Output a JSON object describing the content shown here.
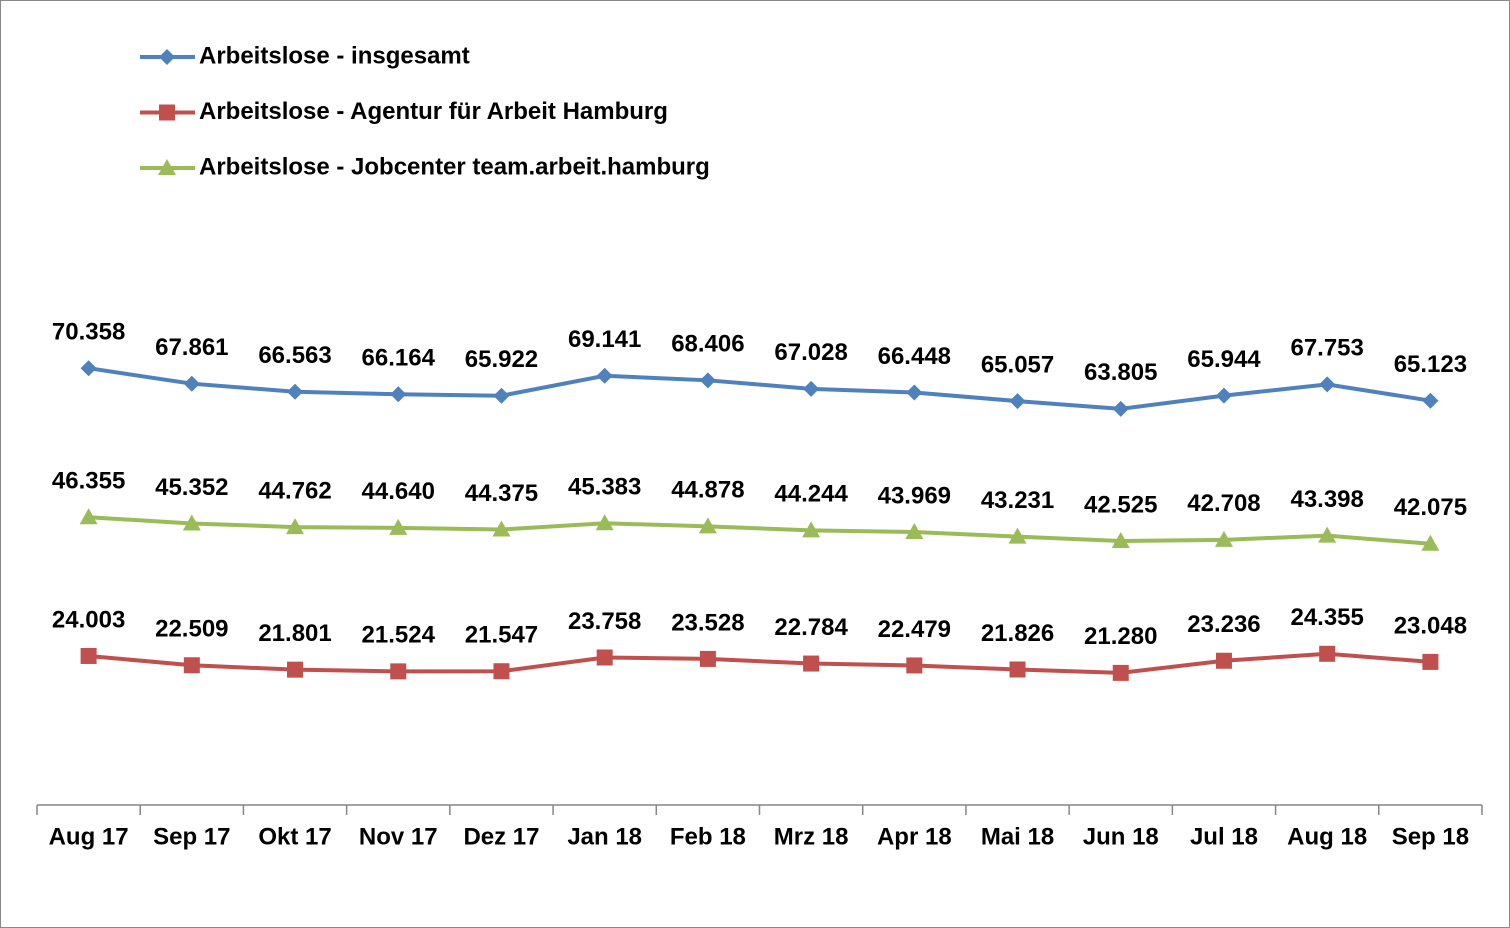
{
  "chart_data": {
    "type": "line",
    "categories": [
      "Aug 17",
      "Sep 17",
      "Okt 17",
      "Nov 17",
      "Dez 17",
      "Jan 18",
      "Feb 18",
      "Mrz 18",
      "Apr 18",
      "Mai 18",
      "Jun 18",
      "Jul 18",
      "Aug 18",
      "Sep 18"
    ],
    "series": [
      {
        "name": "Arbeitslose - insgesamt",
        "color": "#4f81bd",
        "marker": "diamond",
        "values": [
          70358,
          67861,
          66563,
          66164,
          65922,
          69141,
          68406,
          67028,
          66448,
          65057,
          63805,
          65944,
          67753,
          65123
        ],
        "value_labels": [
          "70.358",
          "67.861",
          "66.563",
          "66.164",
          "65.922",
          "69.141",
          "68.406",
          "67.028",
          "66.448",
          "65.057",
          "63.805",
          "65.944",
          "67.753",
          "65.123"
        ]
      },
      {
        "name": "Arbeitslose - Agentur für Arbeit Hamburg",
        "color": "#c0504d",
        "marker": "square",
        "values": [
          24003,
          22509,
          21801,
          21524,
          21547,
          23758,
          23528,
          22784,
          22479,
          21826,
          21280,
          23236,
          24355,
          23048
        ],
        "value_labels": [
          "24.003",
          "22.509",
          "21.801",
          "21.524",
          "21.547",
          "23.758",
          "23.528",
          "22.784",
          "22.479",
          "21.826",
          "21.280",
          "23.236",
          "24.355",
          "23.048"
        ]
      },
      {
        "name": "Arbeitslose - Jobcenter team.arbeit.hamburg",
        "color": "#9bbb59",
        "marker": "triangle",
        "values": [
          46355,
          45352,
          44762,
          44640,
          44375,
          45383,
          44878,
          44244,
          43969,
          43231,
          42525,
          42708,
          43398,
          42075
        ],
        "value_labels": [
          "46.355",
          "45.352",
          "44.762",
          "44.640",
          "44.375",
          "45.383",
          "44.878",
          "44.244",
          "43.969",
          "43.231",
          "42.525",
          "42.708",
          "43.398",
          "42.075"
        ]
      }
    ],
    "ylim": [
      0,
      120000
    ],
    "legend": "top-left"
  }
}
